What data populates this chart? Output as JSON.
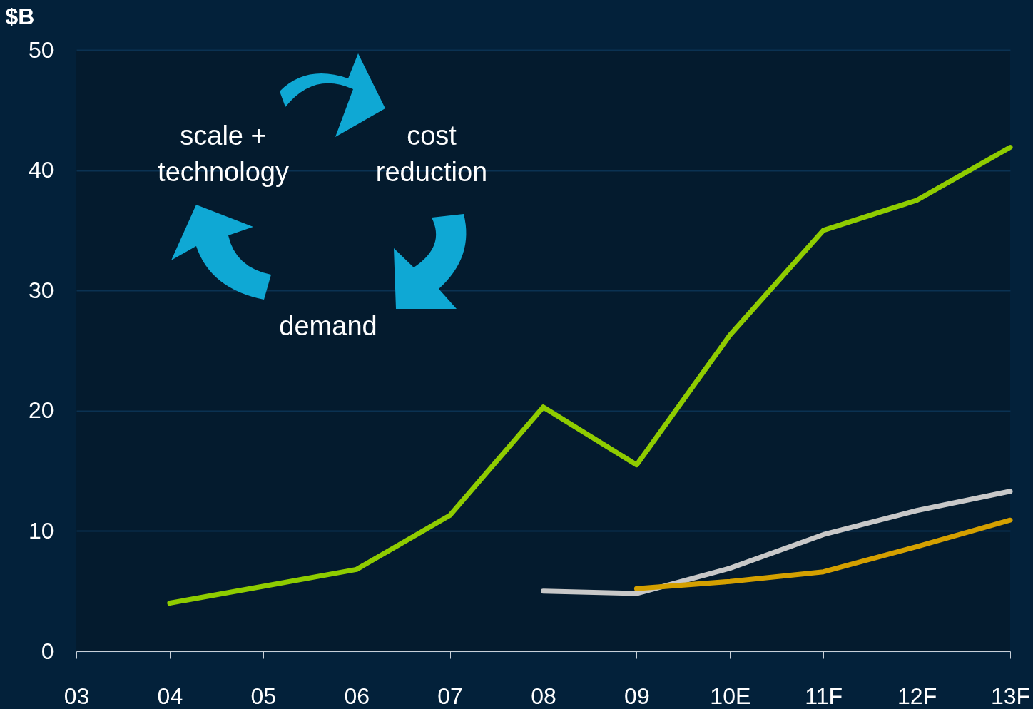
{
  "chart_data": {
    "type": "line",
    "ylabel": "$B",
    "categories": [
      "03",
      "04",
      "05",
      "06",
      "07",
      "08",
      "09",
      "10E",
      "11F",
      "12F",
      "13F"
    ],
    "ylim": [
      0,
      50
    ],
    "yticks": [
      0,
      10,
      20,
      30,
      40,
      50
    ],
    "grid": "y",
    "legend": false,
    "line_style": "solid",
    "series": [
      {
        "color": "#8fcc00",
        "values": [
          null,
          4.0,
          5.4,
          6.8,
          11.3,
          20.3,
          15.5,
          26.3,
          35.0,
          37.5,
          41.9
        ]
      },
      {
        "color": "#c8c8c8",
        "values": [
          null,
          null,
          null,
          null,
          null,
          5.0,
          4.8,
          6.9,
          9.7,
          11.7,
          13.3
        ]
      },
      {
        "color": "#d4a000",
        "values": [
          null,
          null,
          null,
          null,
          null,
          null,
          5.2,
          5.8,
          6.6,
          8.7,
          10.9
        ]
      }
    ],
    "annotations": [
      "scale + technology",
      "cost reduction",
      "demand"
    ]
  }
}
